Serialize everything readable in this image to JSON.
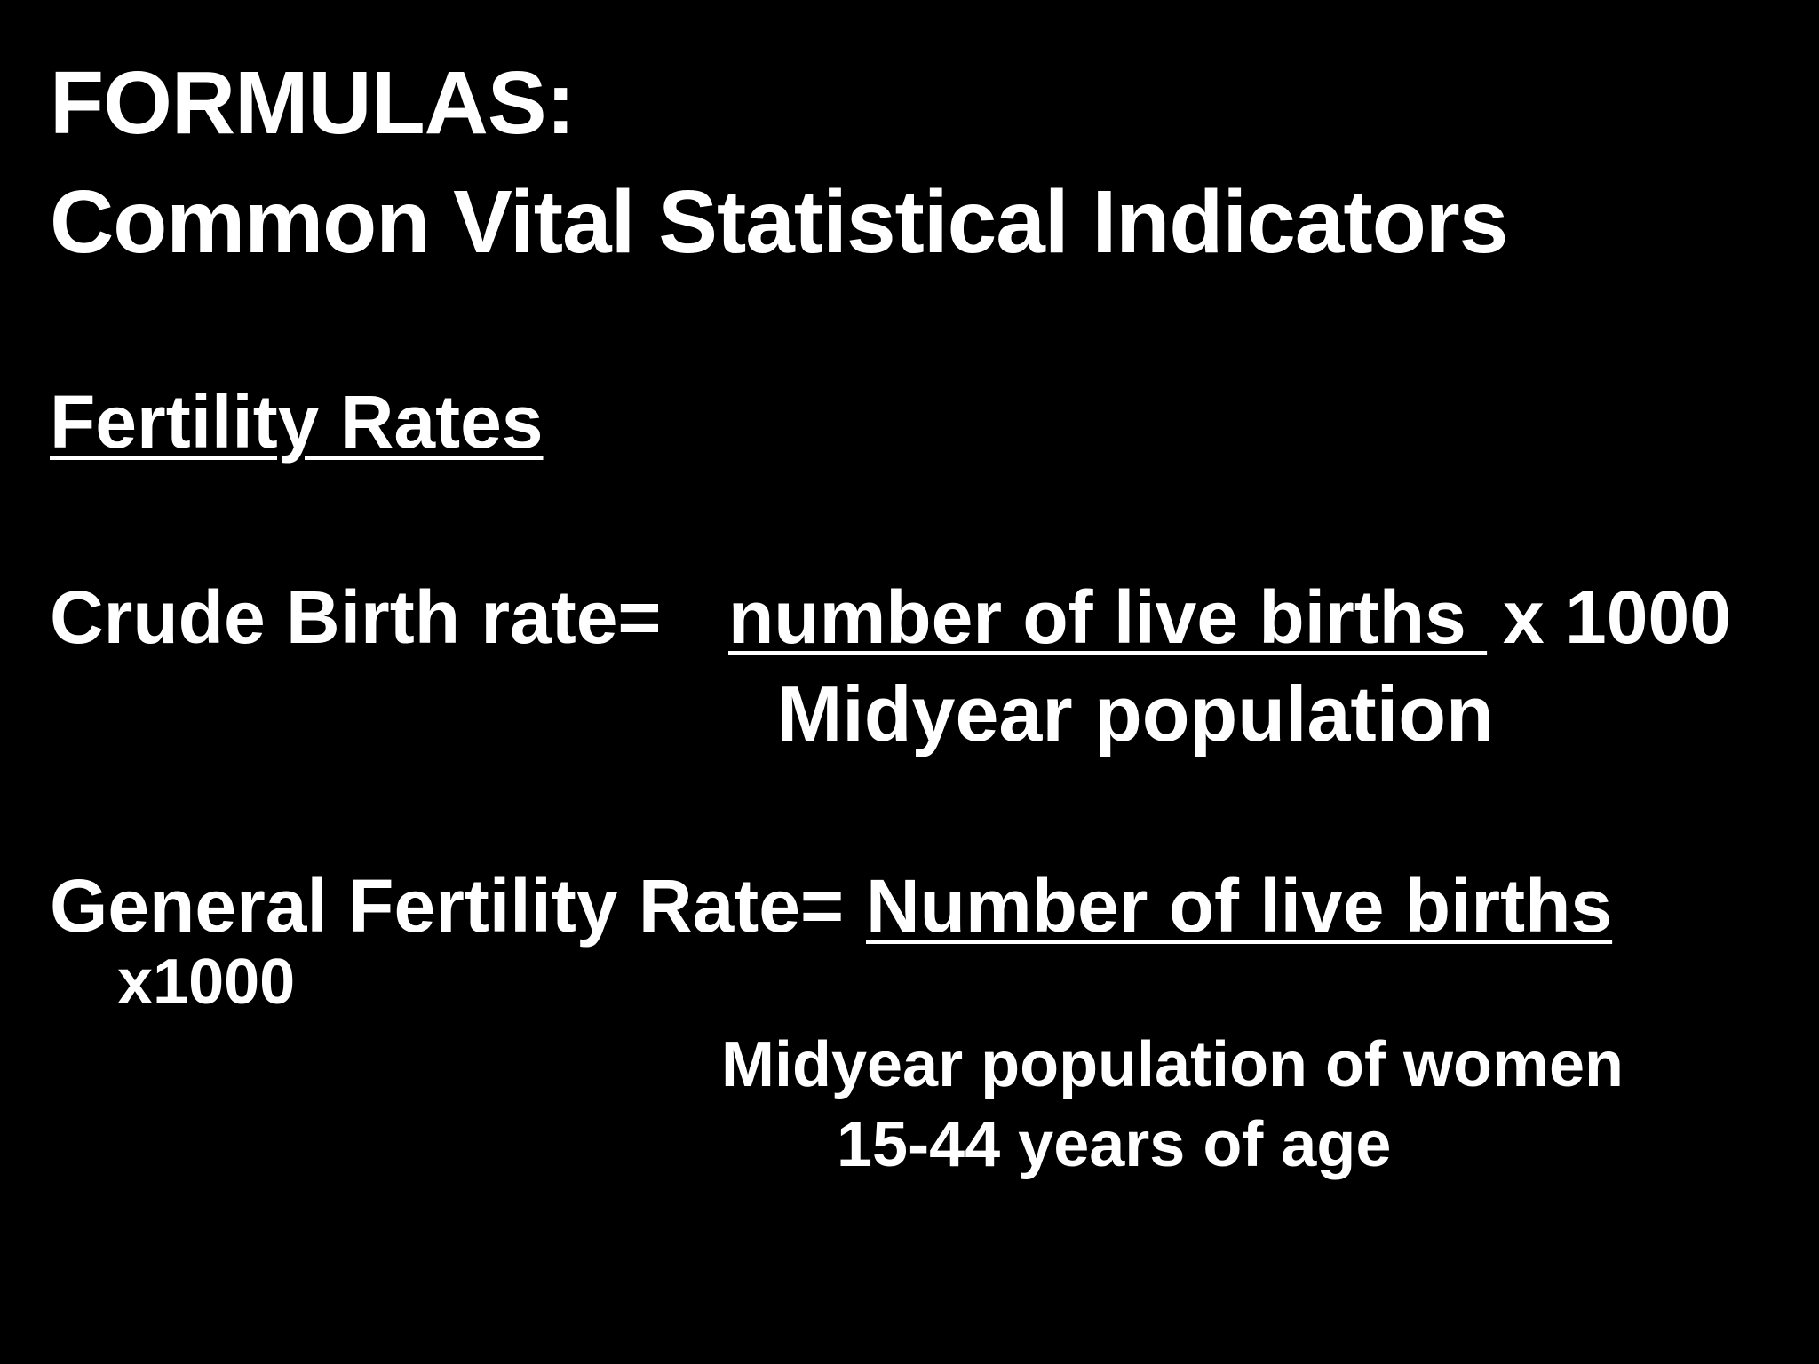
{
  "slide": {
    "title_line1": "FORMULAS:",
    "title_line2": "Common Vital Statistical Indicators",
    "section_heading": "Fertility Rates",
    "crude_birth_rate": {
      "label": "Crude Birth rate=  ",
      "numerator": "number of live births ",
      "multiplier": "x 1000",
      "denominator": "Midyear population"
    },
    "general_fertility_rate": {
      "label": "General Fertility Rate= ",
      "numerator": "Number of live births",
      "multiplier": "x1000",
      "denominator_line1": "Midyear population of women",
      "denominator_line2": "15-44 years of age"
    }
  },
  "colors": {
    "background": "#000000",
    "text": "#ffffff"
  }
}
